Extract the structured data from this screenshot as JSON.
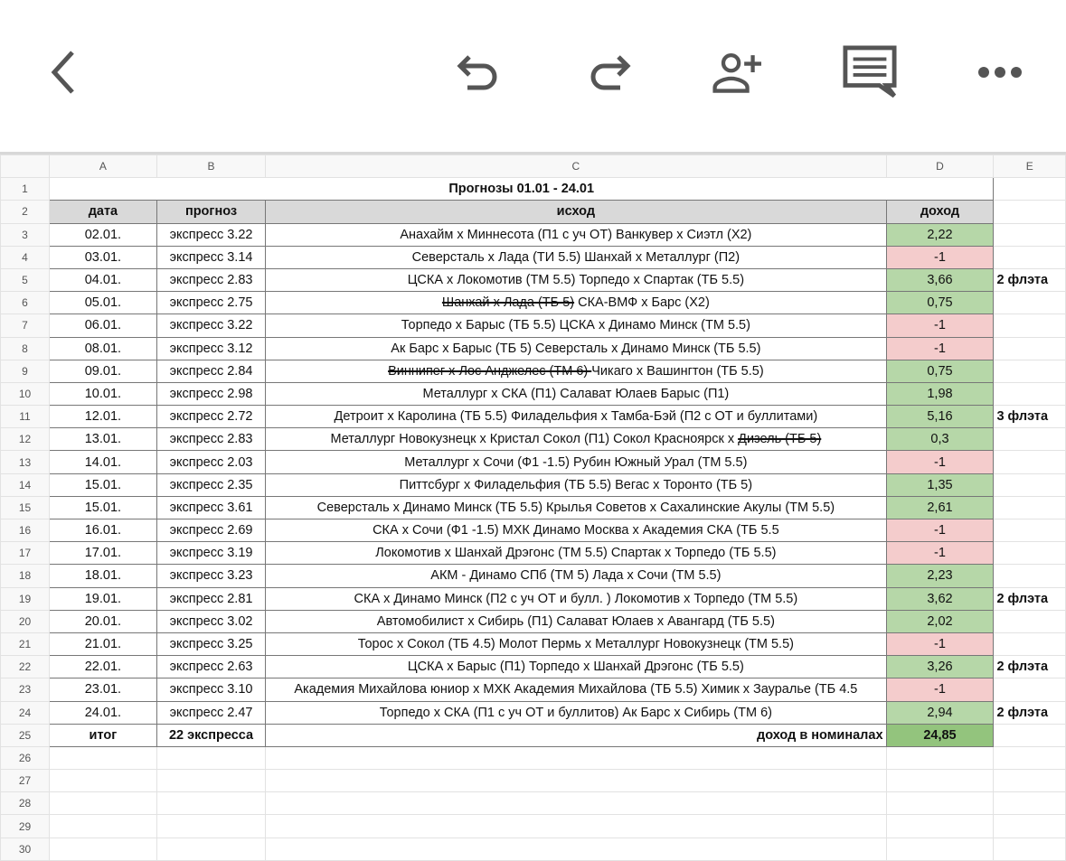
{
  "toolbar": {
    "icons": [
      "back-icon",
      "undo-icon",
      "redo-icon",
      "add-person-icon",
      "comment-icon",
      "more-icon"
    ]
  },
  "columns": [
    "A",
    "B",
    "C",
    "D",
    "E"
  ],
  "title": "Прогнозы 01.01 - 24.01",
  "headers": [
    "дата",
    "прогноз",
    "исход",
    "доход"
  ],
  "rows": [
    {
      "date": "02.01.",
      "forecast": "экспресс 3.22",
      "outcome": "Анахайм х Миннесота (П1 с уч ОТ) Ванкувер х Сиэтл (Х2)",
      "income": "2,22",
      "status": "win",
      "note": ""
    },
    {
      "date": "03.01.",
      "forecast": "экспресс 3.14",
      "outcome": "Северсталь х Лада (ТИ 5.5) Шанхай х Металлург (П2)",
      "income": "-1",
      "status": "loss",
      "note": ""
    },
    {
      "date": "04.01.",
      "forecast": "экспресс 2.83",
      "outcome": "ЦСКА х Локомотив (ТМ 5.5) Торпедо х Спартак (ТБ 5.5)",
      "income": "3,66",
      "status": "win",
      "note": "2 флэта"
    },
    {
      "date": "05.01.",
      "forecast": "экспресс 2.75",
      "struck": "Шанхай х Лада (ТБ 5)",
      "outcome": " СКА-ВМФ х Барс (Х2)",
      "income": "0,75",
      "status": "win",
      "note": ""
    },
    {
      "date": "06.01.",
      "forecast": "экспресс 3.22",
      "outcome": "Торпедо х Барыс (ТБ 5.5) ЦСКА х Динамо Минск (ТМ 5.5)",
      "income": "-1",
      "status": "loss",
      "note": ""
    },
    {
      "date": "08.01.",
      "forecast": "экспресс 3.12",
      "outcome": "Ак Барс х Барыс (ТБ 5) Северсталь х Динамо Минск (ТБ 5.5)",
      "income": "-1",
      "status": "loss",
      "note": ""
    },
    {
      "date": "09.01.",
      "forecast": "экспресс 2.84",
      "struck": "Виннипег х Лос Анджелес (ТМ 6) ",
      "outcome": "Чикаго х Вашингтон (ТБ 5.5)",
      "income": "0,75",
      "status": "win",
      "note": ""
    },
    {
      "date": "10.01.",
      "forecast": "экспресс 2.98",
      "outcome": "Металлург х СКА (П1) Салават Юлаев Барыс (П1)",
      "income": "1,98",
      "status": "win",
      "note": ""
    },
    {
      "date": "12.01.",
      "forecast": "экспресс 2.72",
      "outcome": "Детроит х Каролина (ТБ 5.5) Филадельфия х Тамба-Бэй (П2 с ОТ и буллитами)",
      "income": "5,16",
      "status": "win",
      "note": "3 флэта"
    },
    {
      "date": "13.01.",
      "forecast": "экспресс 2.83",
      "outcome": "Металлург Новокузнецк х Кристал Сокол (П1) Сокол Красноярск х ",
      "struck_end": "Дизель (ТБ 5)",
      "income": "0,3",
      "status": "win",
      "note": ""
    },
    {
      "date": "14.01.",
      "forecast": "экспресс 2.03",
      "outcome": "Металлург х Сочи (Ф1 -1.5) Рубин Южный Урал (ТМ 5.5)",
      "income": "-1",
      "status": "loss",
      "note": ""
    },
    {
      "date": "15.01.",
      "forecast": "экспресс 2.35",
      "outcome": "Питтсбург х Филадельфия (ТБ 5.5) Вегас х Торонто (ТБ 5)",
      "income": "1,35",
      "status": "win",
      "note": ""
    },
    {
      "date": "15.01.",
      "forecast": "экспресс 3.61",
      "outcome": "Северсталь х Динамо Минск (ТБ 5.5) Крылья Советов х Сахалинские Акулы (ТМ 5.5)",
      "income": "2,61",
      "status": "win",
      "note": ""
    },
    {
      "date": "16.01.",
      "forecast": "экспресс 2.69",
      "outcome": "СКА х Сочи (Ф1 -1.5) МХК Динамо Москва х Академия СКА (ТБ 5.5",
      "income": "-1",
      "status": "loss",
      "note": ""
    },
    {
      "date": "17.01.",
      "forecast": "экспресс 3.19",
      "outcome": "Локомотив х Шанхай Дрэгонс (ТМ 5.5) Спартак х Торпедо (ТБ 5.5)",
      "income": "-1",
      "status": "loss",
      "note": ""
    },
    {
      "date": "18.01.",
      "forecast": "экспресс 3.23",
      "outcome": "АКМ - Динамо СПб (ТМ 5) Лада х Сочи (ТМ 5.5)",
      "income": "2,23",
      "status": "win",
      "note": ""
    },
    {
      "date": "19.01.",
      "forecast": "экспресс 2.81",
      "outcome": "СКА х Динамо Минск (П2 с уч ОТ и булл. ) Локомотив х Торпедо (ТМ 5.5)",
      "income": "3,62",
      "status": "win",
      "note": "2 флэта"
    },
    {
      "date": "20.01.",
      "forecast": "экспресс 3.02",
      "outcome": "Автомобилист х Сибирь (П1) Салават Юлаев х Авангард (ТБ 5.5)",
      "income": "2,02",
      "status": "win",
      "note": ""
    },
    {
      "date": "21.01.",
      "forecast": "экспресс 3.25",
      "outcome": "Торос х Сокол (ТБ 4.5) Молот Пермь х Металлург Новокузнецк (ТМ 5.5)",
      "income": "-1",
      "status": "loss",
      "note": ""
    },
    {
      "date": "22.01.",
      "forecast": "экспресс 2.63",
      "outcome": "ЦСКА х Барыс (П1) Торпедо х Шанхай Дрэгонс (ТБ 5.5)",
      "income": "3,26",
      "status": "win",
      "note": "2 флэта"
    },
    {
      "date": "23.01.",
      "forecast": "экспресс 3.10",
      "outcome": "Академия Михайлова юниор х МХК Академия Михайлова (ТБ 5.5) Химик х Зауралье (ТБ 4.5",
      "income": "-1",
      "status": "loss",
      "note": ""
    },
    {
      "date": "24.01.",
      "forecast": "экспресс 2.47",
      "outcome": "Торпедо х СКА (П1 с уч ОТ и буллитов) Ак Барс х Сибирь (ТМ 6)",
      "income": "2,94",
      "status": "win",
      "note": "2 флэта"
    }
  ],
  "total": {
    "label": "итог",
    "count": "22 экспресса",
    "income_label": "доход в номиналах",
    "income": "24,85"
  },
  "empty_rows": [
    "26",
    "27",
    "28",
    "29",
    "30"
  ],
  "colors": {
    "win": "#b6d7a8",
    "loss": "#f4cccc",
    "total": "#93c47d",
    "header": "#d9d9d9"
  }
}
